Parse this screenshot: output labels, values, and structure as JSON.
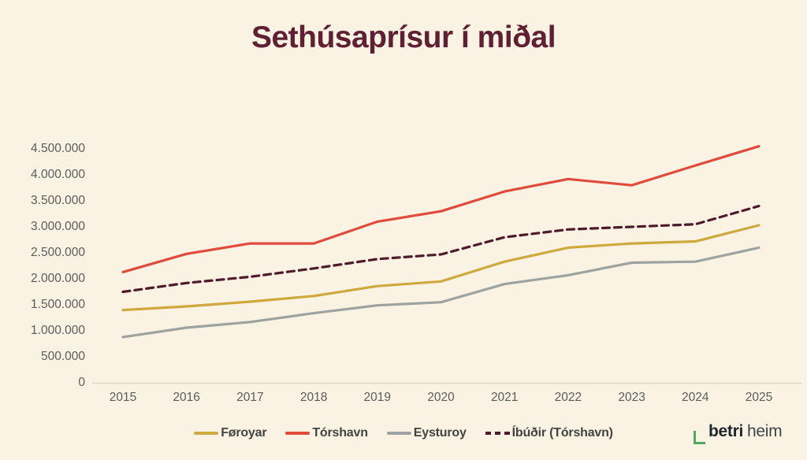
{
  "title": "Sethúsaprísur í miðal",
  "chart_data": {
    "type": "line",
    "title": "Sethúsaprísur í miðal",
    "xlabel": "",
    "ylabel": "",
    "x": [
      2015,
      2016,
      2017,
      2018,
      2019,
      2020,
      2021,
      2022,
      2023,
      2024,
      2025
    ],
    "series": [
      {
        "name": "Føroyar",
        "color": "#D0A93E",
        "style": "solid",
        "values": [
          1400000,
          1470000,
          1560000,
          1670000,
          1860000,
          1950000,
          2330000,
          2600000,
          2680000,
          2720000,
          3030000
        ]
      },
      {
        "name": "Tórshavn",
        "color": "#E04B3C",
        "style": "solid",
        "values": [
          2130000,
          2480000,
          2680000,
          2680000,
          3100000,
          3300000,
          3680000,
          3920000,
          3800000,
          4180000,
          4550000
        ]
      },
      {
        "name": "Eysturoy",
        "color": "#9DA3A1",
        "style": "solid",
        "values": [
          880000,
          1060000,
          1170000,
          1340000,
          1490000,
          1550000,
          1900000,
          2070000,
          2310000,
          2330000,
          2600000
        ]
      },
      {
        "name": "Íbúðir (Tórshavn)",
        "color": "#4F1A2B",
        "style": "dashed",
        "values": [
          1750000,
          1920000,
          2040000,
          2200000,
          2380000,
          2470000,
          2800000,
          2950000,
          3000000,
          3050000,
          3400000
        ]
      }
    ],
    "ylim": [
      0,
      4500000
    ],
    "ytick_step": 500000,
    "ytick_labels": [
      "0",
      "500.000",
      "1.000.000",
      "1.500.000",
      "2.000.000",
      "2.500.000",
      "3.000.000",
      "3.500.000",
      "4.000.000",
      "4.500.000"
    ],
    "grid": false,
    "legend_position": "bottom"
  },
  "logo": {
    "bold_text": "betri",
    "regular_text": "heim",
    "bracket_color": "#56A85F"
  },
  "colors": {
    "background": "#FAF3E3",
    "title": "#5F2033",
    "axis_text": "#5C5C5C",
    "legend_text": "#434343",
    "axis_line": "#E4DDC9"
  }
}
